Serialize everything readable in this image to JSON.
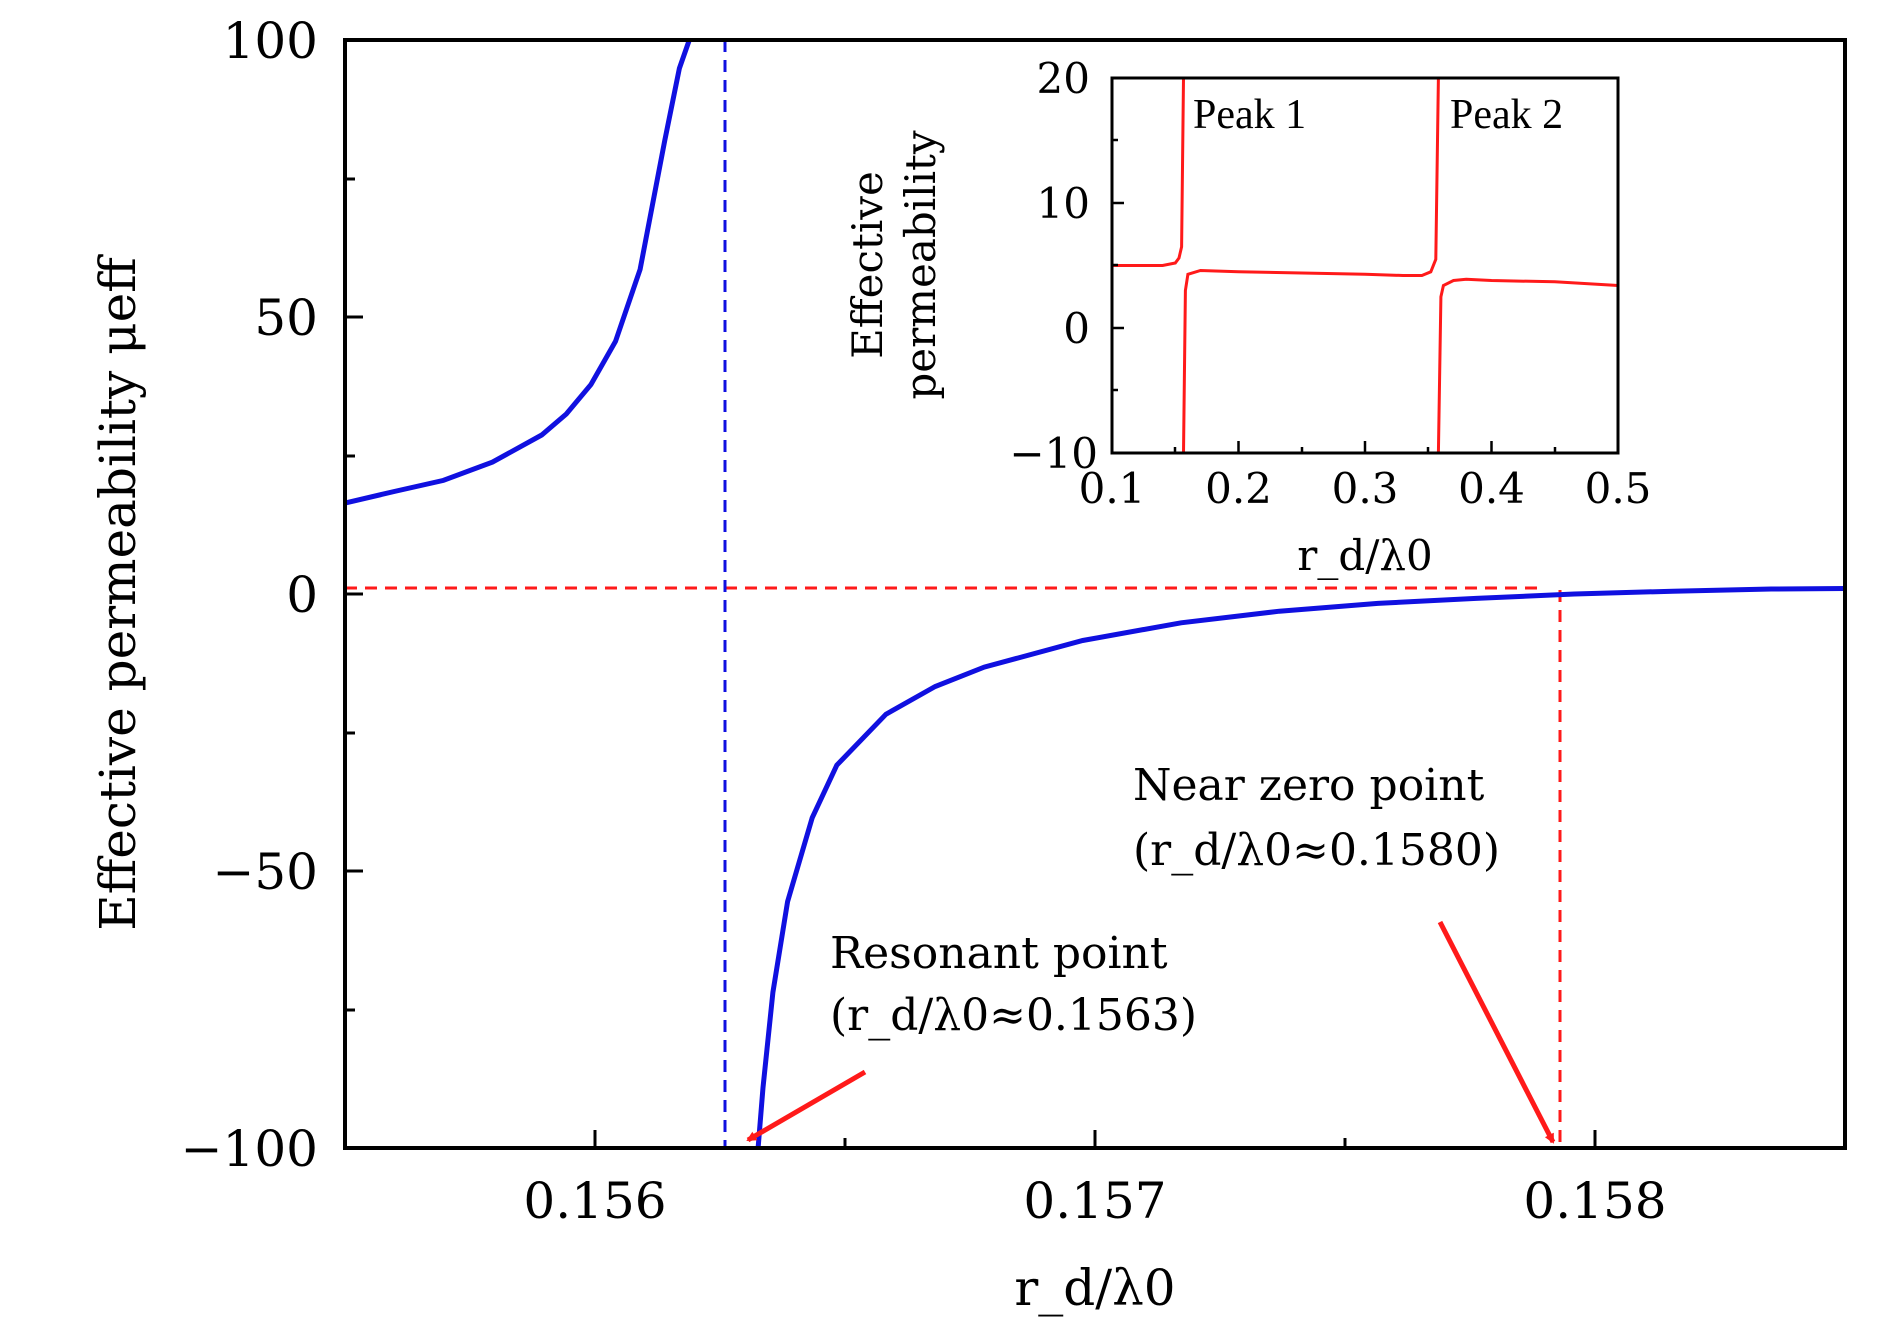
{
  "chart_data": [
    {
      "id": "main",
      "type": "line",
      "title": "",
      "xlabel": "r_d/λ0",
      "ylabel": "Effective permeability μeff",
      "xlim": [
        0.1555,
        0.15855
      ],
      "ylim": [
        -100,
        100
      ],
      "xticks": [
        0.156,
        0.157,
        0.158
      ],
      "xtick_labels": [
        "0.156",
        "0.157",
        "0.158"
      ],
      "yticks": [
        100,
        50,
        0,
        -50,
        -100
      ],
      "ytick_labels": [
        "100",
        "50",
        "0",
        "−50",
        "−100"
      ],
      "grid": false,
      "series": [
        {
          "name": "mu_eff",
          "color": "#1010e0",
          "resonance_x": 0.15627,
          "segments": [
            {
              "x": [
                0.1555,
                0.1556,
                0.1557,
                0.1558,
                0.1559,
                0.15595,
                0.156,
                0.15605,
                0.1561,
                0.15615,
                0.15618,
                0.1562
              ],
              "y": [
                16.4,
                18.5,
                20.5,
                23.8,
                28.7,
                32.5,
                37.8,
                45.6,
                58.6,
                81.8,
                94.9,
                100
              ]
            },
            {
              "x": [
                0.15634,
                0.15635,
                0.15637,
                0.1564,
                0.15645,
                0.1565,
                0.1566,
                0.1567,
                0.1568,
                0.157,
                0.1572,
                0.1574,
                0.1576,
                0.1578,
                0.158,
                0.1582,
                0.1584,
                0.15855
              ],
              "y": [
                -100,
                -89.1,
                -71.9,
                -55.5,
                -40.4,
                -30.9,
                -21.7,
                -16.7,
                -13.2,
                -8.4,
                -5.2,
                -3.1,
                -1.7,
                -0.8,
                0,
                0.5,
                0.9,
                1.0
              ]
            }
          ]
        }
      ],
      "guides": {
        "zero_line_y": 0,
        "resonant_line_x": 0.15627,
        "near_zero_line_x": 0.15793
      },
      "annotations": [
        {
          "name": "resonant-point",
          "lines": [
            "Resonant point",
            "(r_d/λ0≈0.1563)"
          ]
        },
        {
          "name": "near-zero-point",
          "lines": [
            "Near zero point",
            "(r_d/λ0≈0.1580)"
          ]
        }
      ]
    },
    {
      "id": "inset",
      "type": "line",
      "title": "",
      "xlabel": "r_d/λ0",
      "ylabel": [
        "Effective",
        "permeability"
      ],
      "xlim": [
        0.1,
        0.5
      ],
      "ylim": [
        -10,
        20
      ],
      "xticks": [
        0.1,
        0.2,
        0.3,
        0.4,
        0.5
      ],
      "xtick_labels": [
        "0.1",
        "0.2",
        "0.3",
        "0.4",
        "0.5"
      ],
      "yticks": [
        20,
        10,
        0,
        -10
      ],
      "ytick_labels": [
        "20",
        "10",
        "0",
        "−10"
      ],
      "grid": false,
      "series": [
        {
          "name": "mu_eff_wide",
          "color": "#ff1a1a",
          "segments": [
            {
              "x": [
                0.1,
                0.12,
                0.14,
                0.15,
                0.153,
                0.155,
                0.1565
              ],
              "y": [
                5.0,
                5.0,
                5.0,
                5.2,
                5.6,
                6.5,
                20
              ]
            },
            {
              "x": [
                0.1565,
                0.158,
                0.16,
                0.17,
                0.2,
                0.25,
                0.3,
                0.33,
                0.345,
                0.352,
                0.356,
                0.358
              ],
              "y": [
                -10,
                3.0,
                4.3,
                4.6,
                4.5,
                4.4,
                4.3,
                4.2,
                4.2,
                4.5,
                5.5,
                20
              ]
            },
            {
              "x": [
                0.358,
                0.36,
                0.362,
                0.37,
                0.38,
                0.4,
                0.45,
                0.5
              ],
              "y": [
                -10,
                2.5,
                3.4,
                3.8,
                3.9,
                3.8,
                3.7,
                3.4
              ]
            }
          ]
        }
      ],
      "annotations": [
        {
          "name": "peak-1-label",
          "text": "Peak 1"
        },
        {
          "name": "peak-2-label",
          "text": "Peak 2"
        }
      ]
    }
  ]
}
